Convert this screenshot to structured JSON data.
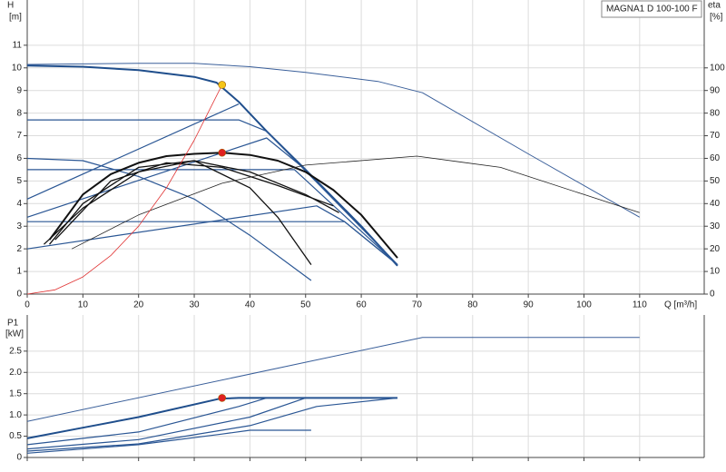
{
  "chart_data": [
    {
      "type": "line",
      "title": "MAGNA1 D 100-100 F",
      "ylabel": "H",
      "yunit": "[m]",
      "y2label": "eta",
      "y2unit": "[%]",
      "xlabel": "Q [m³/h]",
      "xlim": [
        0,
        121.6
      ],
      "ylim": [
        0,
        13
      ],
      "y2lim": [
        0,
        130
      ],
      "xticks": [
        0,
        10,
        20,
        30,
        40,
        50,
        60,
        70,
        80,
        90,
        100,
        110
      ],
      "yticks": [
        0,
        1,
        2,
        3,
        4,
        5,
        6,
        7,
        8,
        9,
        10,
        11
      ],
      "y2ticks": [
        0,
        10,
        20,
        30,
        40,
        50,
        60,
        70,
        80,
        90,
        100
      ],
      "grid": true,
      "series": [
        {
          "color": "#1f4e8c",
          "width": 2,
          "x": [
            0,
            10,
            20,
            30,
            34,
            38,
            43,
            50,
            60,
            66.5
          ],
          "values": [
            10.1,
            10.05,
            9.9,
            9.6,
            9.35,
            8.5,
            7.2,
            5.5,
            3.0,
            1.25
          ]
        },
        {
          "color": "#3a5f9a",
          "width": 1,
          "x": [
            0,
            20,
            30,
            40,
            50,
            63,
            71,
            90,
            110
          ],
          "values": [
            10.15,
            10.2,
            10.2,
            10.05,
            9.8,
            9.4,
            8.9,
            6.2,
            3.4
          ]
        },
        {
          "color": "#2a5694",
          "width": 1.2,
          "x": [
            0,
            38,
            43,
            66.5
          ],
          "values": [
            7.7,
            7.7,
            7.2,
            1.3
          ]
        },
        {
          "color": "#2a5694",
          "width": 1.2,
          "x": [
            0,
            38
          ],
          "values": [
            4.2,
            8.4
          ]
        },
        {
          "color": "#2a5694",
          "width": 1.2,
          "x": [
            0,
            43,
            50,
            66.5
          ],
          "values": [
            3.4,
            6.9,
            5.5,
            1.3
          ]
        },
        {
          "color": "#2a5694",
          "width": 1.2,
          "x": [
            0,
            48,
            66.5
          ],
          "values": [
            5.5,
            5.5,
            1.3
          ]
        },
        {
          "color": "#2a5694",
          "width": 1.2,
          "x": [
            0,
            52,
            57,
            66.5
          ],
          "values": [
            2.0,
            3.9,
            3.2,
            1.3
          ]
        },
        {
          "color": "#2a5694",
          "width": 1.2,
          "x": [
            0,
            57,
            66.5
          ],
          "values": [
            3.2,
            3.2,
            1.3
          ]
        },
        {
          "color": "#2a5694",
          "width": 1.2,
          "x": [
            0,
            10,
            20,
            30,
            40,
            51
          ],
          "values": [
            6.0,
            5.9,
            5.2,
            4.2,
            2.6,
            0.6
          ]
        },
        {
          "color": "#111111",
          "width": 2,
          "x": [
            4,
            10,
            15,
            20,
            25,
            30,
            35,
            40,
            45,
            50,
            55,
            60,
            66.5
          ],
          "values": [
            2.4,
            4.4,
            5.3,
            5.8,
            6.1,
            6.2,
            6.25,
            6.15,
            5.9,
            5.4,
            4.6,
            3.5,
            1.6
          ]
        },
        {
          "color": "#111111",
          "width": 1.3,
          "x": [
            4,
            10,
            20,
            30,
            40,
            50,
            56
          ],
          "values": [
            2.2,
            4.0,
            5.6,
            5.9,
            5.4,
            4.4,
            3.6
          ]
        },
        {
          "color": "#111111",
          "width": 1.3,
          "x": [
            3,
            10,
            20,
            30,
            40,
            45,
            51
          ],
          "values": [
            2.2,
            3.8,
            5.4,
            5.9,
            4.7,
            3.4,
            1.3
          ]
        },
        {
          "color": "#111111",
          "width": 1.3,
          "x": [
            5,
            15,
            25,
            35,
            45,
            55
          ],
          "values": [
            2.4,
            5.0,
            5.8,
            5.6,
            4.8,
            3.9
          ]
        },
        {
          "color": "#222222",
          "width": 0.8,
          "axis": "y2",
          "x": [
            8,
            20,
            35,
            50,
            70,
            85,
            100,
            110
          ],
          "values": [
            20,
            35,
            49,
            57,
            61,
            56,
            44,
            36
          ]
        },
        {
          "color": "#e03030",
          "width": 0.8,
          "x": [
            0,
            5,
            10,
            15,
            20,
            25,
            30,
            35
          ],
          "values": [
            0,
            0.19,
            0.76,
            1.7,
            3.0,
            4.7,
            6.8,
            9.25
          ]
        }
      ],
      "points": [
        {
          "color": "#f5c518",
          "x": 35,
          "value": 9.25
        },
        {
          "color": "#e02020",
          "x": 35,
          "value": 6.25
        }
      ]
    },
    {
      "type": "line",
      "ylabel": "P1",
      "yunit": "[kW]",
      "xlim": [
        0,
        121.6
      ],
      "ylim": [
        0,
        3.35
      ],
      "xticks": [
        0,
        10,
        20,
        30,
        40,
        50,
        60,
        70,
        80,
        90,
        100,
        110
      ],
      "yticks": [
        0,
        0.5,
        {
          "value": 1,
          "label": "1.0"
        },
        1.5,
        {
          "value": 2,
          "label": "2.0"
        },
        2.5
      ],
      "grid": true,
      "series": [
        {
          "color": "#3a5f9a",
          "width": 1,
          "x": [
            0,
            71,
            110
          ],
          "values": [
            0.85,
            2.82,
            2.82
          ]
        },
        {
          "color": "#1f4e8c",
          "width": 2,
          "x": [
            0,
            10,
            20,
            34.5,
            38,
            66.5
          ],
          "values": [
            0.45,
            0.7,
            0.95,
            1.38,
            1.4,
            1.4
          ]
        },
        {
          "color": "#2a5694",
          "width": 1.2,
          "x": [
            0,
            20,
            38,
            43,
            66.5
          ],
          "values": [
            0.3,
            0.6,
            1.2,
            1.4,
            1.4
          ]
        },
        {
          "color": "#2a5694",
          "width": 1.2,
          "x": [
            0,
            20,
            40,
            50,
            66.5
          ],
          "values": [
            0.2,
            0.42,
            0.95,
            1.4,
            1.4
          ]
        },
        {
          "color": "#2a5694",
          "width": 1.2,
          "x": [
            0,
            20,
            40,
            52,
            66.5
          ],
          "values": [
            0.15,
            0.32,
            0.75,
            1.2,
            1.4
          ]
        },
        {
          "color": "#2a5694",
          "width": 1.2,
          "x": [
            0,
            20,
            35,
            40,
            51
          ],
          "values": [
            0.1,
            0.3,
            0.55,
            0.64,
            0.64
          ]
        }
      ],
      "points": [
        {
          "color": "#e02020",
          "x": 35,
          "value": 1.4
        }
      ]
    }
  ]
}
